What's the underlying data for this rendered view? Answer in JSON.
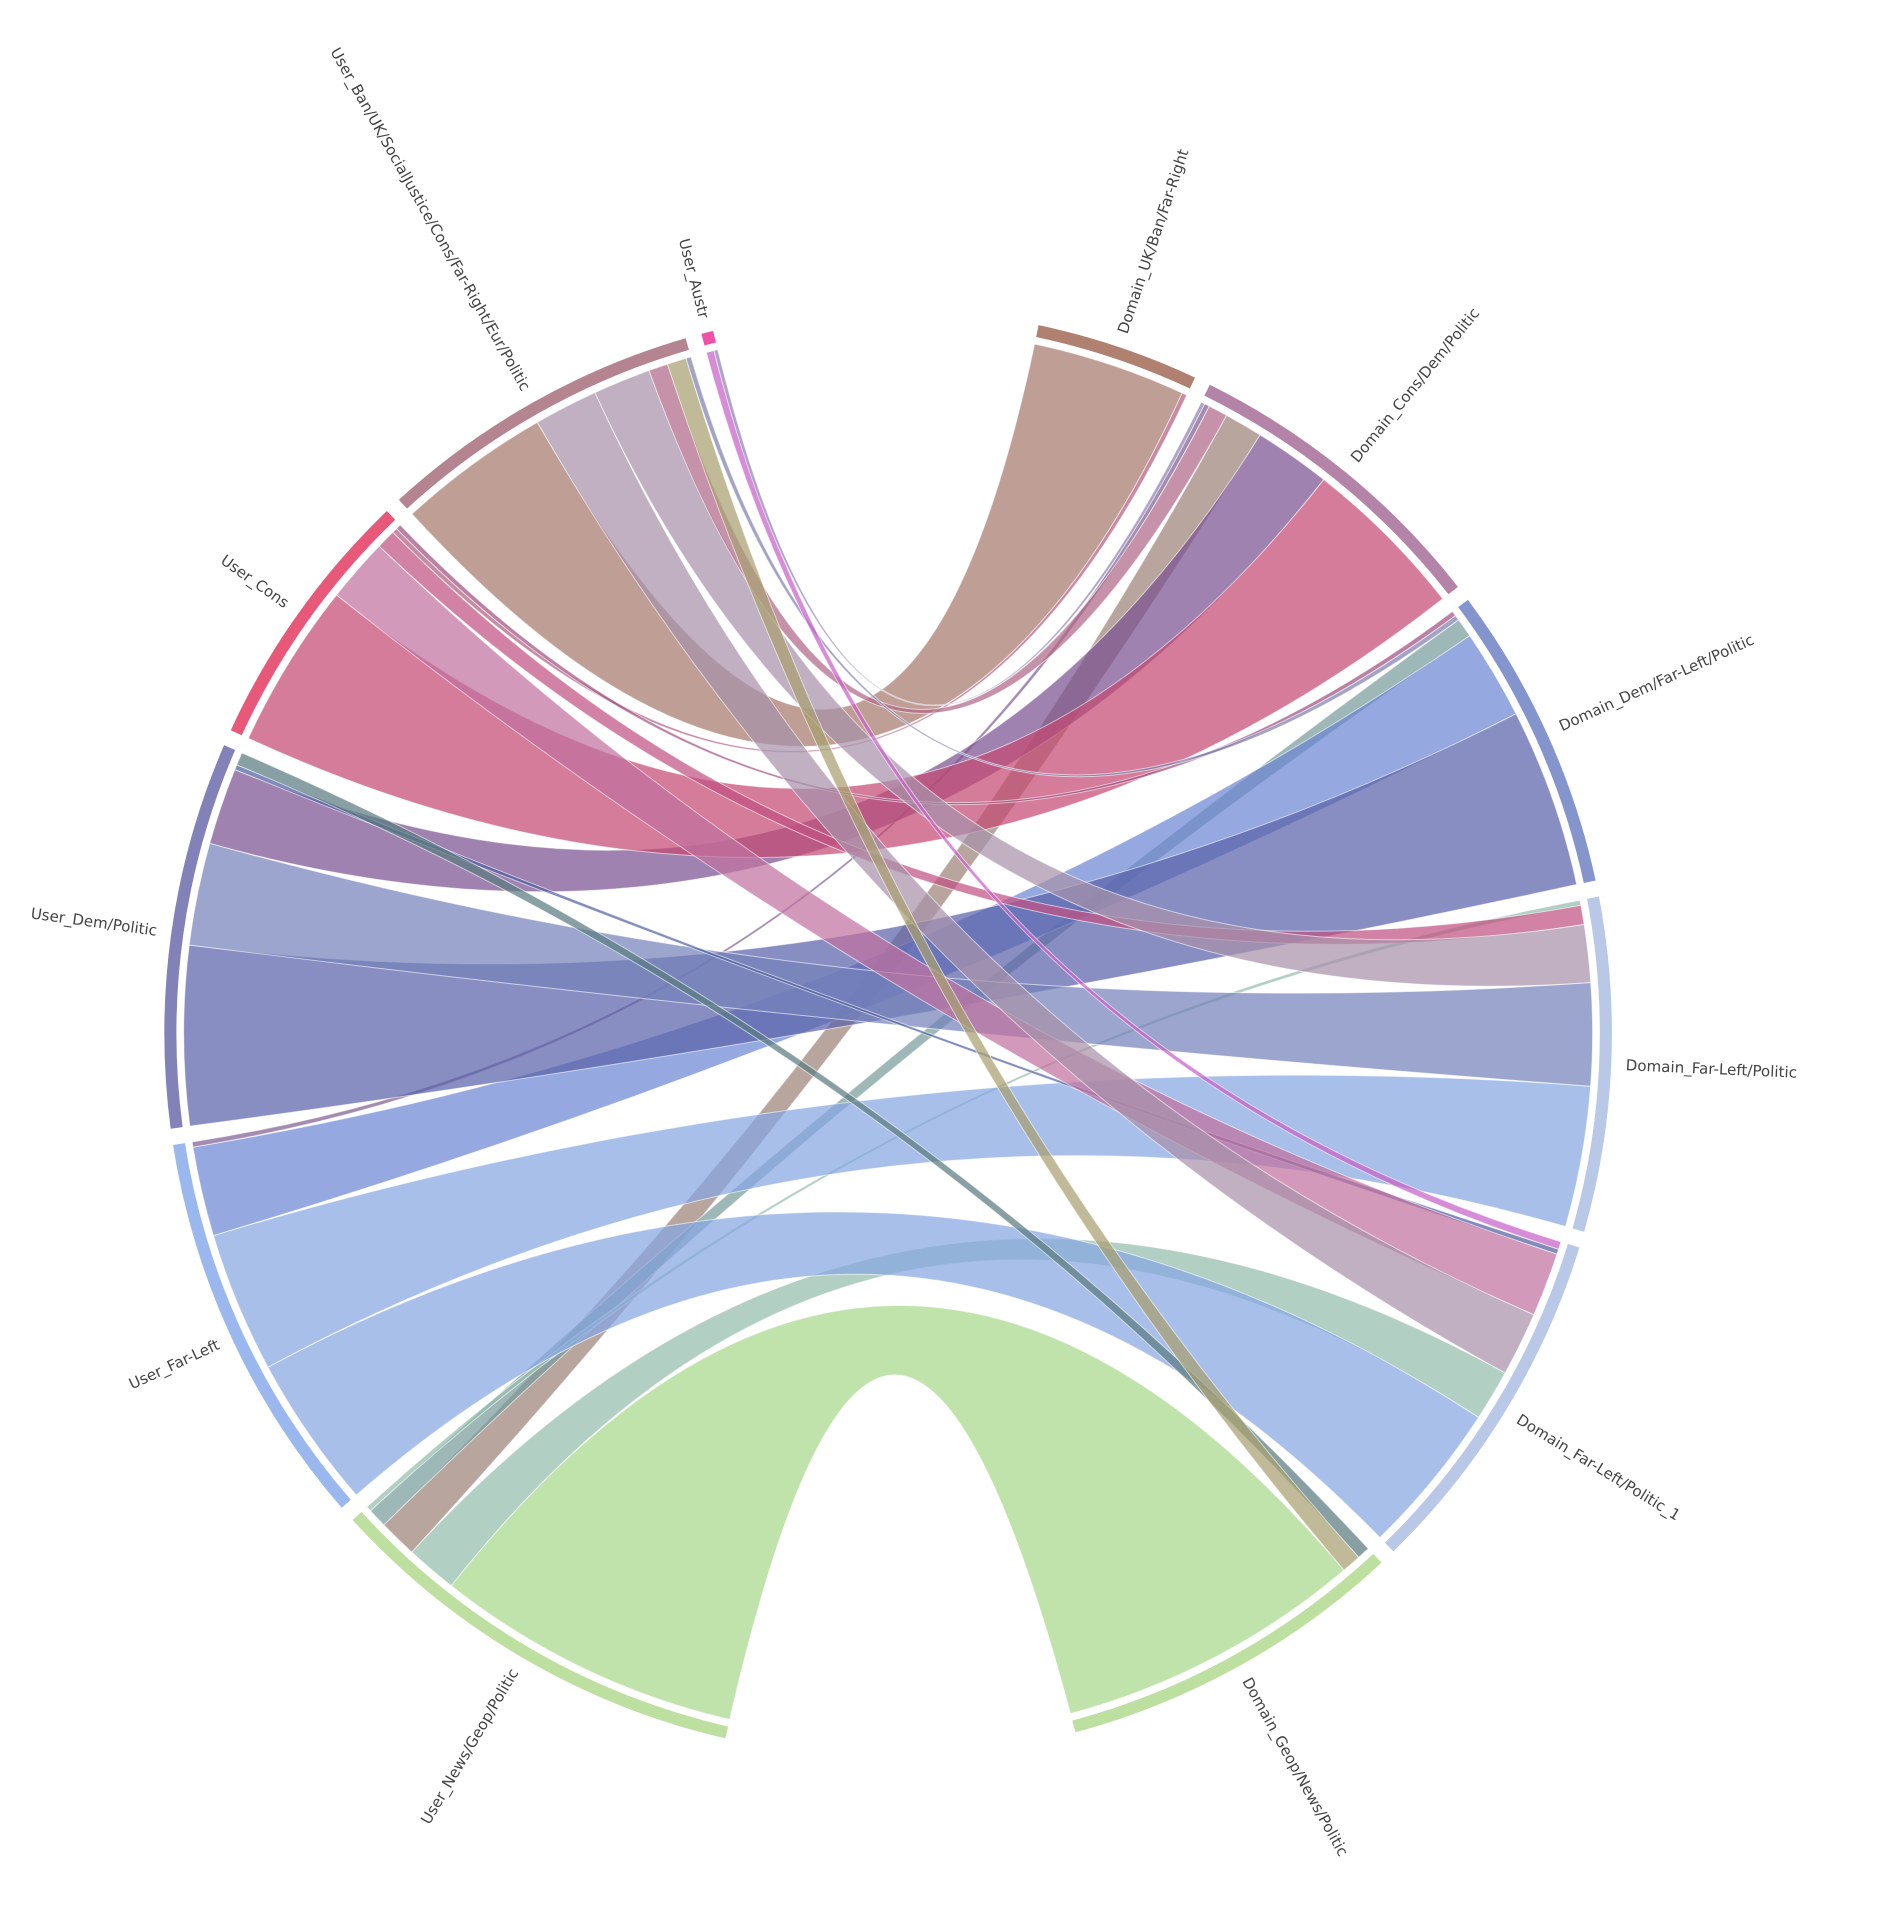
{
  "chart_data": {
    "type": "chord",
    "nodes": [
      {
        "name": "User_News/Geop/Politic",
        "color": "#bde0a0",
        "side": "user"
      },
      {
        "name": "User_Far-Left",
        "color": "#9ab8ee",
        "side": "user"
      },
      {
        "name": "User_Dem/Politic",
        "color": "#8282b8",
        "side": "user"
      },
      {
        "name": "User_Cons",
        "color": "#e85878",
        "side": "user"
      },
      {
        "name": "User_Ban/UK/SocialJustice/Cons/Far-Right/Eur/Politic",
        "color": "#b48490",
        "side": "user"
      },
      {
        "name": "User_Austr",
        "color": "#f050a8",
        "side": "user"
      },
      {
        "name": "Domain_UK/Ban/Far-Right",
        "color": "#b08070",
        "side": "domain"
      },
      {
        "name": "Domain_Cons/Dem/Politic",
        "color": "#b484a8",
        "side": "domain"
      },
      {
        "name": "Domain_Dem/Far-Left/Politic",
        "color": "#8494cc",
        "side": "domain"
      },
      {
        "name": "Domain_Far-Left/Politic",
        "color": "#b8c8e6",
        "side": "domain"
      },
      {
        "name": "Domain_Far-Left/Politic_1",
        "color": "#b8c8e6",
        "side": "domain"
      },
      {
        "name": "Domain_Geop/News/Politic",
        "color": "#bde0a0",
        "side": "domain"
      }
    ],
    "flows": [
      {
        "source": "User_News/Geop/Politic",
        "target": "Domain_Geop/News/Politic",
        "value": 24,
        "color": "#a8d88c"
      },
      {
        "source": "User_News/Geop/Politic",
        "target": "Domain_Far-Left/Politic_1",
        "value": 4,
        "color": "#94bcac"
      },
      {
        "source": "User_News/Geop/Politic",
        "target": "Domain_Cons/Dem/Politic",
        "value": 3,
        "color": "#9c8478"
      },
      {
        "source": "User_News/Geop/Politic",
        "target": "Domain_Dem/Far-Left/Politic",
        "value": 1.5,
        "color": "#789c9c"
      },
      {
        "source": "User_News/Geop/Politic",
        "target": "Domain_Far-Left/Politic",
        "value": 0.4,
        "color": "#94bcac"
      },
      {
        "source": "User_Far-Left",
        "target": "Domain_Far-Left/Politic_1",
        "value": 12,
        "color": "#86a6e2"
      },
      {
        "source": "User_Far-Left",
        "target": "Domain_Far-Left/Politic",
        "value": 11,
        "color": "#86a6e2"
      },
      {
        "source": "User_Far-Left",
        "target": "Domain_Dem/Far-Left/Politic",
        "value": 7,
        "color": "#6c86d2"
      },
      {
        "source": "User_Far-Left",
        "target": "Domain_Cons/Dem/Politic",
        "value": 0.4,
        "color": "#806090"
      },
      {
        "source": "User_Dem/Politic",
        "target": "Domain_Dem/Far-Left/Politic",
        "value": 14,
        "color": "#5c62aa"
      },
      {
        "source": "User_Dem/Politic",
        "target": "Domain_Far-Left/Politic",
        "value": 8,
        "color": "#7482ba"
      },
      {
        "source": "User_Dem/Politic",
        "target": "Domain_Cons/Dem/Politic",
        "value": 6,
        "color": "#7c5292"
      },
      {
        "source": "User_Dem/Politic",
        "target": "Domain_Far-Left/Politic_1",
        "value": 0.4,
        "color": "#5060a0"
      },
      {
        "source": "User_Dem/Politic",
        "target": "Domain_Geop/News/Politic",
        "value": 1,
        "color": "#5a7c80"
      },
      {
        "source": "User_Cons",
        "target": "Domain_Cons/Dem/Politic",
        "value": 13,
        "color": "#c44a72"
      },
      {
        "source": "User_Cons",
        "target": "Domain_Far-Left/Politic_1",
        "value": 5,
        "color": "#c072a0"
      },
      {
        "source": "User_Cons",
        "target": "Domain_Far-Left/Politic",
        "value": 1.5,
        "color": "#c05282"
      },
      {
        "source": "User_Cons",
        "target": "Domain_UK/Ban/Far-Right",
        "value": 0.4,
        "color": "#b06080"
      },
      {
        "source": "User_Cons",
        "target": "Domain_Dem/Far-Left/Politic",
        "value": 0.4,
        "color": "#a05080"
      },
      {
        "source": "User_Ban/UK/SocialJustice/Cons/Far-Right/Eur/Politic",
        "target": "Domain_UK/Ban/Far-Right",
        "value": 12,
        "color": "#a6786c"
      },
      {
        "source": "User_Ban/UK/SocialJustice/Cons/Far-Right/Eur/Politic",
        "target": "Domain_Far-Left/Politic_1",
        "value": 5,
        "color": "#a892aa"
      },
      {
        "source": "User_Ban/UK/SocialJustice/Cons/Far-Right/Eur/Politic",
        "target": "Domain_Far-Left/Politic",
        "value": 4.5,
        "color": "#a892aa"
      },
      {
        "source": "User_Ban/UK/SocialJustice/Cons/Far-Right/Eur/Politic",
        "target": "Domain_Cons/Dem/Politic",
        "value": 1.5,
        "color": "#b06888"
      },
      {
        "source": "User_Ban/UK/SocialJustice/Cons/Far-Right/Eur/Politic",
        "target": "Domain_Geop/News/Politic",
        "value": 1.5,
        "color": "#a8a070"
      },
      {
        "source": "User_Ban/UK/SocialJustice/Cons/Far-Right/Eur/Politic",
        "target": "Domain_Dem/Far-Left/Politic",
        "value": 0.4,
        "color": "#8080b0"
      },
      {
        "source": "User_Austr",
        "target": "Domain_Far-Left/Politic_1",
        "value": 0.6,
        "color": "#c860c8"
      },
      {
        "source": "User_Austr",
        "target": "Domain_Cons/Dem/Politic",
        "value": 0.3,
        "color": "#9080b0"
      }
    ]
  }
}
